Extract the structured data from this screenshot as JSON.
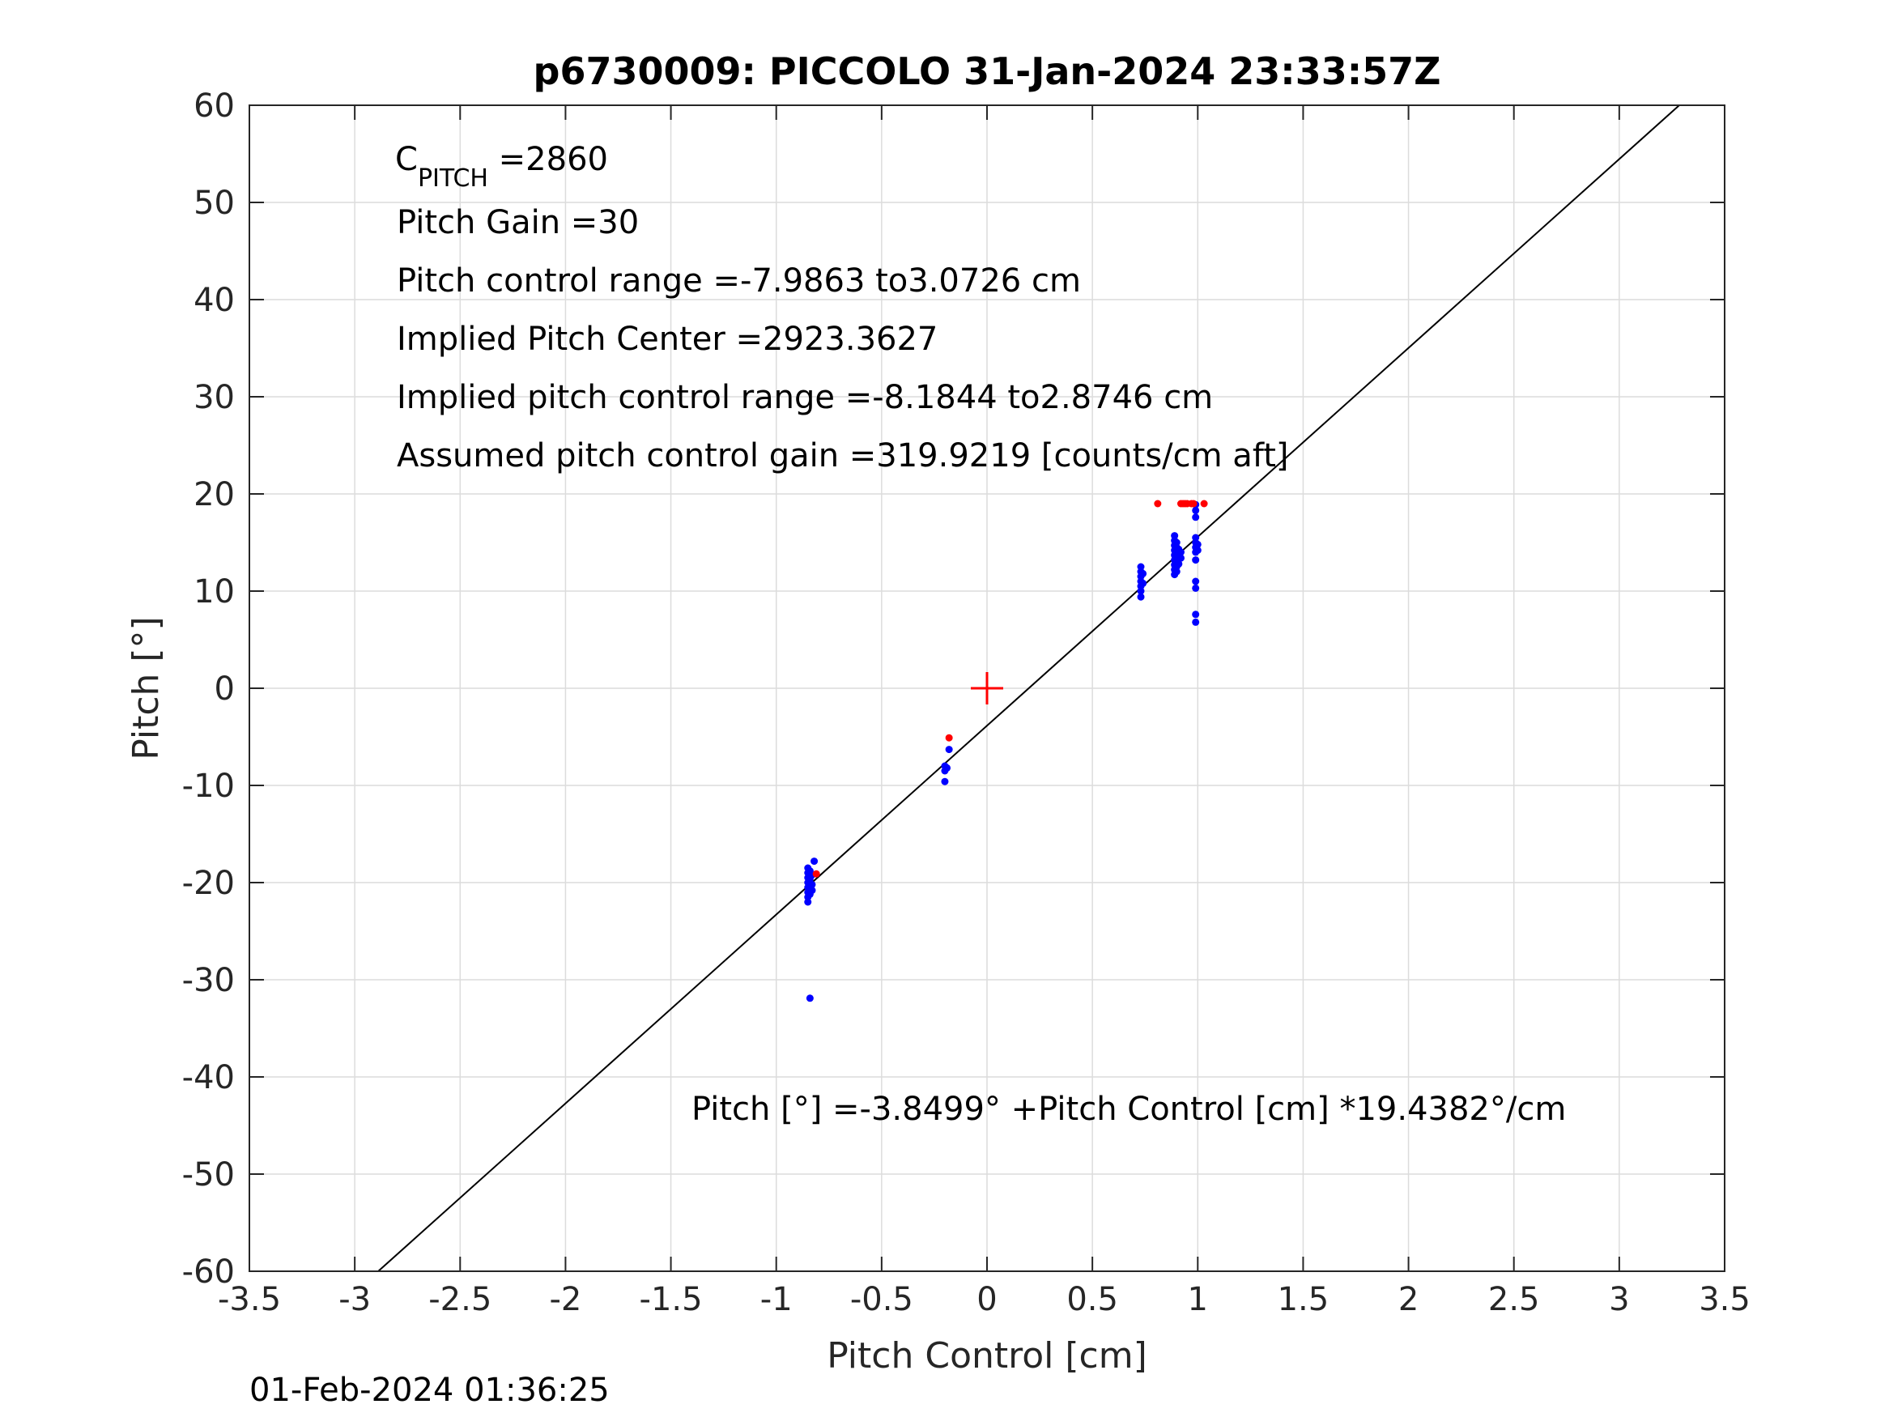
{
  "chart_data": {
    "type": "scatter",
    "title": "p6730009: PICCOLO 31-Jan-2024 23:33:57Z",
    "xlabel": "Pitch Control [cm]",
    "ylabel": "Pitch [°]",
    "xlim": [
      -3.5,
      3.5
    ],
    "ylim": [
      -60,
      60
    ],
    "xticks": [
      -3.5,
      -3,
      -2.5,
      -2,
      -1.5,
      -1,
      -0.5,
      0,
      0.5,
      1,
      1.5,
      2,
      2.5,
      3,
      3.5
    ],
    "xtick_labels": [
      "-3.5",
      "-3",
      "-2.5",
      "-2",
      "-1.5",
      "-1",
      "-0.5",
      "0",
      "0.5",
      "1",
      "1.5",
      "2",
      "2.5",
      "3",
      "3.5"
    ],
    "yticks": [
      -60,
      -50,
      -40,
      -30,
      -20,
      -10,
      0,
      10,
      20,
      30,
      40,
      50,
      60
    ],
    "ytick_labels": [
      "-60",
      "-50",
      "-40",
      "-30",
      "-20",
      "-10",
      "0",
      "10",
      "20",
      "30",
      "40",
      "50",
      "60"
    ],
    "grid": true,
    "fit_line": {
      "intercept": -3.8499,
      "slope": 19.4382,
      "x_range": [
        -3.5,
        3.5
      ],
      "color": "#000000"
    },
    "center_marker": {
      "x": 0,
      "y": 0,
      "color": "#ff0000"
    },
    "series": [
      {
        "color": "#0000ff",
        "points": [
          [
            -0.85,
            -18.5
          ],
          [
            -0.85,
            -19.0
          ],
          [
            -0.85,
            -19.5
          ],
          [
            -0.85,
            -20.0
          ],
          [
            -0.85,
            -20.5
          ],
          [
            -0.85,
            -21.0
          ],
          [
            -0.85,
            -21.5
          ],
          [
            -0.85,
            -22.0
          ],
          [
            -0.84,
            -18.8
          ],
          [
            -0.84,
            -19.6
          ],
          [
            -0.84,
            -20.4
          ],
          [
            -0.84,
            -21.2
          ],
          [
            -0.83,
            -19.2
          ],
          [
            -0.83,
            -20.8
          ],
          [
            -0.83,
            -20.2
          ],
          [
            -0.82,
            -17.8
          ],
          [
            -0.84,
            -31.9
          ],
          [
            -0.2,
            -8.0
          ],
          [
            -0.2,
            -8.5
          ],
          [
            -0.2,
            -9.6
          ],
          [
            -0.19,
            -8.2
          ],
          [
            -0.18,
            -6.3
          ],
          [
            0.73,
            9.4
          ],
          [
            0.73,
            10.0
          ],
          [
            0.73,
            10.5
          ],
          [
            0.73,
            11.0
          ],
          [
            0.73,
            11.5
          ],
          [
            0.73,
            12.0
          ],
          [
            0.73,
            12.5
          ],
          [
            0.74,
            10.8
          ],
          [
            0.74,
            11.8
          ],
          [
            0.89,
            11.7
          ],
          [
            0.89,
            12.2
          ],
          [
            0.89,
            12.7
          ],
          [
            0.89,
            13.2
          ],
          [
            0.89,
            13.7
          ],
          [
            0.89,
            14.2
          ],
          [
            0.89,
            14.7
          ],
          [
            0.89,
            15.2
          ],
          [
            0.89,
            15.7
          ],
          [
            0.9,
            12.0
          ],
          [
            0.9,
            12.5
          ],
          [
            0.9,
            13.0
          ],
          [
            0.9,
            13.5
          ],
          [
            0.9,
            14.0
          ],
          [
            0.9,
            14.5
          ],
          [
            0.9,
            15.0
          ],
          [
            0.91,
            12.8
          ],
          [
            0.91,
            13.8
          ],
          [
            0.91,
            14.3
          ],
          [
            0.92,
            13.4
          ],
          [
            0.92,
            14.0
          ],
          [
            0.99,
            6.8
          ],
          [
            0.99,
            7.6
          ],
          [
            0.99,
            10.3
          ],
          [
            0.99,
            11.0
          ],
          [
            0.99,
            13.2
          ],
          [
            0.99,
            14.0
          ],
          [
            0.99,
            14.5
          ],
          [
            0.99,
            15.0
          ],
          [
            0.99,
            15.5
          ],
          [
            0.99,
            17.6
          ],
          [
            0.99,
            18.3
          ],
          [
            0.99,
            18.9
          ],
          [
            1.0,
            14.2
          ],
          [
            1.0,
            14.8
          ]
        ]
      },
      {
        "color": "#ff0000",
        "points": [
          [
            -0.18,
            -5.1
          ],
          [
            -0.81,
            -19.1
          ],
          [
            0.81,
            19.0
          ],
          [
            0.92,
            19.0
          ],
          [
            0.93,
            19.0
          ],
          [
            0.94,
            19.0
          ],
          [
            0.95,
            19.0
          ],
          [
            0.97,
            19.0
          ],
          [
            0.98,
            19.0
          ],
          [
            1.03,
            19.0
          ]
        ]
      }
    ],
    "annotations": {
      "c_pitch_main": "C",
      "c_pitch_sub": "PITCH",
      "c_pitch_value": " =2860",
      "pitch_gain": "Pitch Gain =30",
      "control_range": "Pitch control range =-7.9863 to3.0726 cm",
      "implied_center": "Implied Pitch Center =2923.3627",
      "implied_range": "Implied pitch control range =-8.1844 to2.8746 cm",
      "assumed_gain": "Assumed pitch control gain =319.9219 [counts/cm aft]",
      "fit_equation": "Pitch [°] =-3.8499° +Pitch Control [cm] *19.4382°/cm"
    },
    "timestamp": "01-Feb-2024 01:36:25"
  }
}
